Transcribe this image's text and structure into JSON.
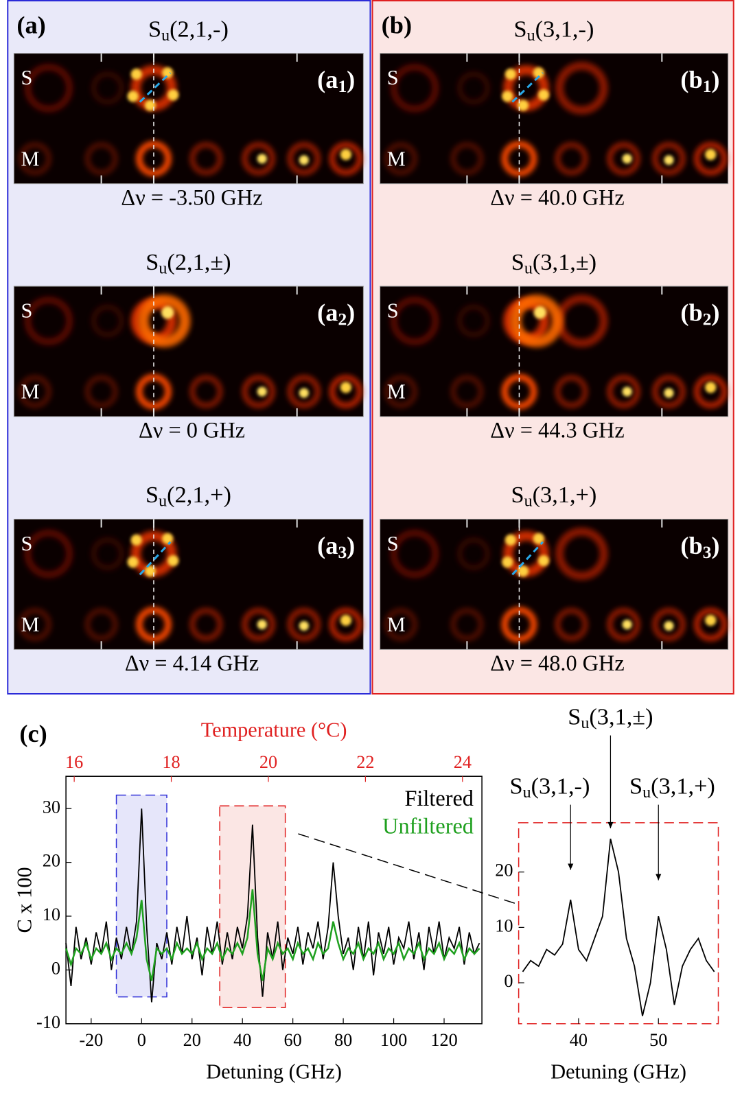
{
  "panels": [
    {
      "label": "(a)",
      "rows": [
        {
          "title": [
            "S",
            "u",
            "(2,1,-)"
          ],
          "tag": [
            "(a",
            "1",
            ")"
          ],
          "s_label": "S",
          "m_label": "M",
          "detuning": "Δν = -3.50 GHz"
        },
        {
          "title": [
            "S",
            "u",
            "(2,1,±)"
          ],
          "tag": [
            "(a",
            "2",
            ")"
          ],
          "s_label": "S",
          "m_label": "M",
          "detuning": "Δν = 0 GHz"
        },
        {
          "title": [
            "S",
            "u",
            "(2,1,+)"
          ],
          "tag": [
            "(a",
            "3",
            ")"
          ],
          "s_label": "S",
          "m_label": "M",
          "detuning": "Δν = 4.14 GHz"
        }
      ]
    },
    {
      "label": "(b)",
      "rows": [
        {
          "title": [
            "S",
            "u",
            "(3,1,-)"
          ],
          "tag": [
            "(b",
            "1",
            ")"
          ],
          "s_label": "S",
          "m_label": "M",
          "detuning": "Δν = 40.0 GHz"
        },
        {
          "title": [
            "S",
            "u",
            "(3,1,±)"
          ],
          "tag": [
            "(b",
            "2",
            ")"
          ],
          "s_label": "S",
          "m_label": "M",
          "detuning": "Δν = 44.3 GHz"
        },
        {
          "title": [
            "S",
            "u",
            "(3,1,+)"
          ],
          "tag": [
            "(b",
            "3",
            ")"
          ],
          "s_label": "S",
          "m_label": "M",
          "detuning": "Δν = 48.0 GHz"
        }
      ]
    }
  ],
  "panel_c_label": "(c)",
  "chart_data": [
    {
      "type": "line",
      "xlabel": "Detuning (GHz)",
      "ylabel": "C x 100",
      "x2label": "Temperature (°C)",
      "xlim": [
        -30,
        135
      ],
      "xticks": [
        -20,
        0,
        20,
        40,
        60,
        80,
        100,
        120
      ],
      "ylim": [
        -10,
        36
      ],
      "yticks": [
        -10,
        0,
        10,
        20,
        30
      ],
      "x2lim": [
        15.83,
        24.4
      ],
      "x2ticks": [
        16,
        18,
        20,
        22,
        24
      ],
      "legend": "upper right",
      "x": [
        -30,
        -28,
        -26,
        -24,
        -22,
        -20,
        -18,
        -16,
        -14,
        -12,
        -10,
        -8,
        -6,
        -4,
        -2,
        0,
        2,
        4,
        6,
        8,
        10,
        12,
        14,
        16,
        18,
        20,
        22,
        24,
        26,
        28,
        30,
        32,
        34,
        36,
        38,
        40,
        42,
        44,
        46,
        48,
        50,
        52,
        54,
        56,
        58,
        60,
        62,
        64,
        66,
        68,
        70,
        72,
        74,
        76,
        78,
        80,
        82,
        84,
        86,
        88,
        90,
        92,
        94,
        96,
        98,
        100,
        102,
        104,
        106,
        108,
        110,
        112,
        114,
        116,
        118,
        120,
        122,
        124,
        126,
        128,
        130,
        132,
        134
      ],
      "series": [
        {
          "name": "Filtered",
          "color": "#000000",
          "values": [
            5,
            -3,
            8,
            2,
            6,
            1,
            7,
            3,
            9,
            0,
            6,
            2,
            8,
            3,
            9,
            30,
            8,
            -6,
            5,
            2,
            7,
            1,
            8,
            3,
            10,
            2,
            6,
            -1,
            8,
            3,
            9,
            1,
            7,
            2,
            8,
            4,
            10,
            27,
            6,
            -5,
            7,
            2,
            9,
            0,
            6,
            3,
            8,
            1,
            7,
            4,
            9,
            2,
            8,
            20,
            10,
            3,
            6,
            0,
            8,
            2,
            9,
            -1,
            7,
            3,
            8,
            1,
            6,
            4,
            9,
            2,
            7,
            0,
            8,
            3,
            9,
            2,
            6,
            4,
            8,
            1,
            7,
            3,
            5
          ]
        },
        {
          "name": "Unfiltered",
          "color": "#1fa01f",
          "values": [
            4,
            1,
            4,
            3,
            5,
            2,
            4,
            3,
            5,
            2,
            4,
            3,
            5,
            3,
            6,
            13,
            2,
            -2,
            4,
            3,
            4,
            2,
            5,
            3,
            4,
            3,
            5,
            2,
            4,
            3,
            5,
            2,
            4,
            3,
            5,
            3,
            6,
            15,
            3,
            -2,
            4,
            2,
            5,
            3,
            4,
            2,
            5,
            3,
            4,
            2,
            5,
            3,
            4,
            9,
            5,
            2,
            4,
            3,
            5,
            2,
            4,
            3,
            5,
            2,
            4,
            3,
            5,
            2,
            4,
            3,
            5,
            2,
            4,
            3,
            5,
            2,
            4,
            3,
            5,
            2,
            4,
            3,
            4
          ]
        }
      ]
    },
    {
      "type": "line",
      "xlabel": "Detuning (GHz)",
      "xlim": [
        32.5,
        57.5
      ],
      "xticks": [
        40,
        50
      ],
      "ylim": [
        -7.4,
        28.9
      ],
      "yticks": [
        0,
        10,
        20
      ],
      "x": [
        33,
        34,
        35,
        36,
        37,
        38,
        39,
        40,
        41,
        42,
        43,
        44,
        45,
        46,
        47,
        48,
        49,
        50,
        51,
        52,
        53,
        54,
        55,
        56,
        57
      ],
      "series": [
        {
          "name": null,
          "color": "#000000",
          "values": [
            2,
            4,
            3,
            6,
            5,
            7,
            15,
            6,
            4,
            8,
            12,
            26,
            20,
            8,
            3,
            -6,
            0,
            12,
            6,
            -4,
            3,
            6,
            8,
            4,
            2
          ]
        }
      ],
      "annotations": [
        {
          "text": [
            "S",
            "u",
            "(3,1,-)"
          ],
          "x": 39
        },
        {
          "text": [
            "S",
            "u",
            "(3,1,±)"
          ],
          "x": 44
        },
        {
          "text": [
            "S",
            "u",
            "(3,1,+)"
          ],
          "x": 50
        }
      ]
    }
  ]
}
